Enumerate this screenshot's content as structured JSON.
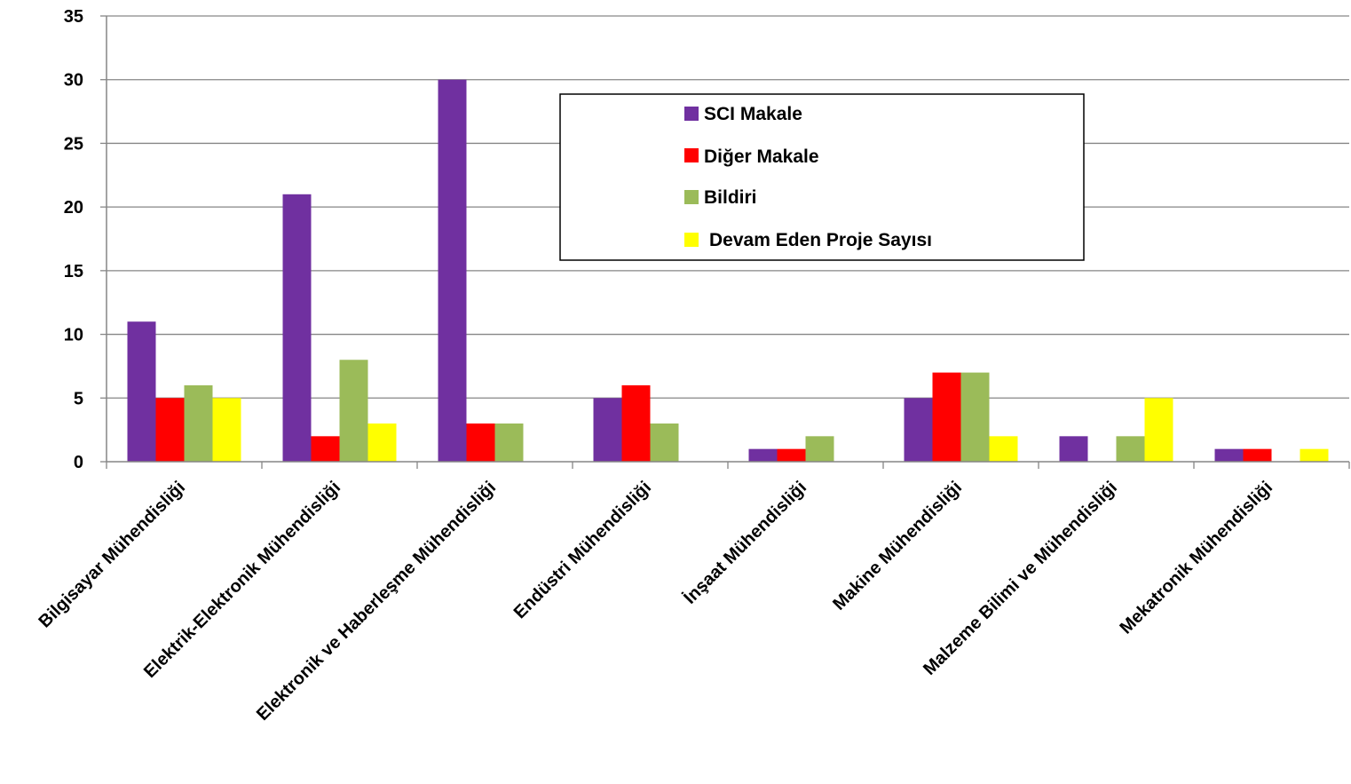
{
  "chart_data": {
    "type": "bar",
    "categories": [
      "Bilgisayar Mühendisliği",
      "Elektrik-Elektronik Mühendisliği",
      "Elektronik ve Haberleşme Mühendisliği",
      "Endüstri Mühendisliği",
      "İnşaat Mühendisliği",
      "Makine Mühendisliği",
      "Malzeme Bilimi ve Mühendisliği",
      "Mekatronik Mühendisliği"
    ],
    "series": [
      {
        "name": "SCI Makale",
        "color": "#7030A0",
        "values": [
          11,
          21,
          30,
          5,
          1,
          5,
          2,
          1
        ]
      },
      {
        "name": "Diğer Makale",
        "color": "#FF0000",
        "values": [
          5,
          2,
          3,
          6,
          1,
          7,
          0,
          1
        ]
      },
      {
        "name": "Bildiri",
        "color": "#9BBB59",
        "values": [
          6,
          8,
          3,
          3,
          2,
          7,
          2,
          0
        ]
      },
      {
        "name": "Devam Eden Proje Sayısı",
        "color": "#FFFF00",
        "values": [
          5,
          3,
          0,
          0,
          0,
          2,
          5,
          1
        ]
      }
    ],
    "yticks": [
      "0",
      "5",
      "10",
      "15",
      "20",
      "25",
      "30",
      "35"
    ],
    "ylim": [
      0,
      35
    ],
    "grid": true,
    "legend_position": "top-center"
  }
}
